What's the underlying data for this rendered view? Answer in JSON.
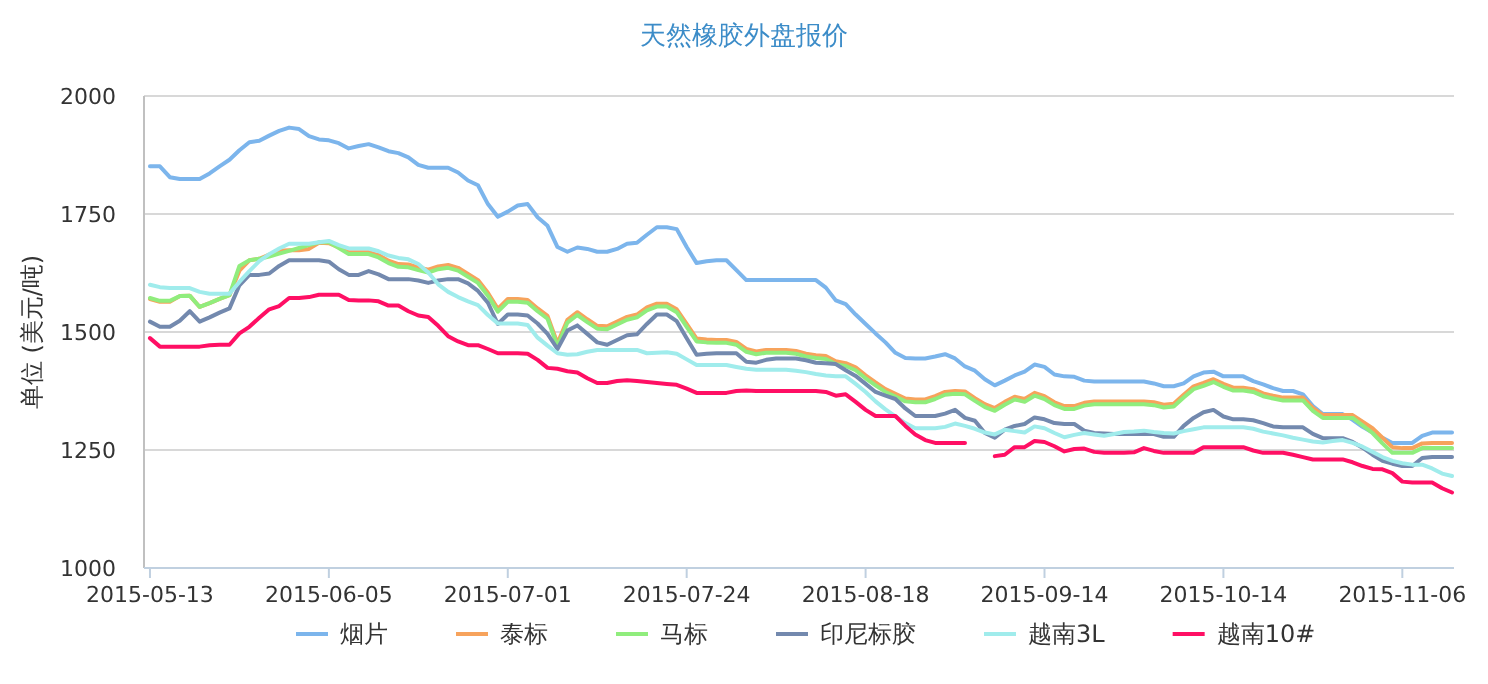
{
  "chart_data": {
    "type": "line",
    "title": "天然橡胶外盘报价",
    "ylabel": "单位 (美元/吨)",
    "categories": [
      "2015-05-13",
      null,
      null,
      null,
      null,
      null,
      null,
      null,
      null,
      null,
      null,
      null,
      null,
      null,
      null,
      null,
      null,
      null,
      "2015-06-05",
      null,
      null,
      null,
      null,
      null,
      null,
      null,
      null,
      null,
      null,
      null,
      null,
      null,
      null,
      null,
      null,
      null,
      "2015-07-01",
      null,
      null,
      null,
      null,
      null,
      null,
      null,
      null,
      null,
      null,
      null,
      null,
      null,
      null,
      null,
      null,
      null,
      "2015-07-24",
      null,
      null,
      null,
      null,
      null,
      null,
      null,
      null,
      null,
      null,
      null,
      null,
      null,
      null,
      null,
      null,
      null,
      "2015-08-18",
      null,
      null,
      null,
      null,
      null,
      null,
      null,
      null,
      null,
      null,
      null,
      null,
      null,
      null,
      null,
      null,
      null,
      "2015-09-14",
      null,
      null,
      null,
      null,
      null,
      null,
      null,
      null,
      null,
      null,
      null,
      null,
      null,
      null,
      null,
      null,
      null,
      "2015-10-14",
      null,
      null,
      null,
      null,
      null,
      null,
      null,
      null,
      null,
      null,
      null,
      null,
      null,
      null,
      null,
      null,
      null,
      "2015-11-06",
      null,
      null,
      null,
      null,
      null
    ],
    "ylim": [
      1000,
      2000
    ],
    "yticks": [
      1000,
      1250,
      1500,
      1750,
      2000
    ],
    "grid": "y",
    "legend": "bottom",
    "marker": "none",
    "line_style": "solid",
    "series": [
      {
        "name": "烟片",
        "color": "#7cb5ec",
        "values": [
          1851,
          1851,
          1828,
          1824,
          1824,
          1824,
          1836,
          1851,
          1865,
          1885,
          1902,
          1905,
          1916,
          1926,
          1933,
          1930,
          1915,
          1908,
          1906,
          1900,
          1889,
          1894,
          1898,
          1891,
          1883,
          1879,
          1870,
          1854,
          1848,
          1848,
          1848,
          1838,
          1821,
          1811,
          1771,
          1744,
          1755,
          1768,
          1771,
          1743,
          1725,
          1680,
          1670,
          1679,
          1676,
          1670,
          1670,
          1676,
          1687,
          1689,
          1706,
          1722,
          1722,
          1718,
          1680,
          1646,
          1650,
          1652,
          1652,
          1631,
          1610,
          1610,
          1610,
          1610,
          1610,
          1610,
          1610,
          1610,
          1594,
          1567,
          1559,
          1537,
          1517,
          1497,
          1478,
          1456,
          1445,
          1444,
          1444,
          1448,
          1453,
          1444,
          1427,
          1418,
          1400,
          1387,
          1397,
          1408,
          1416,
          1431,
          1426,
          1410,
          1406,
          1405,
          1397,
          1395,
          1395,
          1395,
          1395,
          1395,
          1395,
          1391,
          1385,
          1385,
          1391,
          1406,
          1414,
          1416,
          1406,
          1406,
          1406,
          1396,
          1389,
          1381,
          1375,
          1375,
          1368,
          1343,
          1326,
          1326,
          1326,
          1314,
          1299,
          1287,
          1276,
          1265,
          1265,
          1265,
          1280,
          1287,
          1287,
          1287
        ]
      },
      {
        "name": "泰标",
        "color": "#f7a35c",
        "values": [
          1570,
          1564,
          1564,
          1576,
          1577,
          1553,
          1561,
          1570,
          1578,
          1630,
          1652,
          1655,
          1664,
          1672,
          1673,
          1673,
          1676,
          1689,
          1688,
          1679,
          1669,
          1669,
          1669,
          1663,
          1651,
          1644,
          1643,
          1637,
          1632,
          1639,
          1642,
          1636,
          1623,
          1610,
          1583,
          1549,
          1570,
          1570,
          1568,
          1550,
          1534,
          1476,
          1526,
          1542,
          1527,
          1513,
          1512,
          1522,
          1532,
          1537,
          1552,
          1560,
          1560,
          1548,
          1517,
          1486,
          1484,
          1483,
          1483,
          1479,
          1464,
          1459,
          1462,
          1462,
          1462,
          1460,
          1454,
          1451,
          1449,
          1438,
          1434,
          1425,
          1408,
          1393,
          1379,
          1369,
          1359,
          1357,
          1357,
          1364,
          1373,
          1375,
          1374,
          1360,
          1347,
          1339,
          1352,
          1363,
          1358,
          1371,
          1364,
          1351,
          1343,
          1343,
          1350,
          1353,
          1353,
          1353,
          1353,
          1353,
          1353,
          1351,
          1346,
          1348,
          1367,
          1385,
          1392,
          1400,
          1390,
          1382,
          1382,
          1379,
          1370,
          1365,
          1361,
          1361,
          1361,
          1339,
          1324,
          1324,
          1324,
          1324,
          1310,
          1296,
          1276,
          1256,
          1254,
          1254,
          1264,
          1265,
          1265,
          1265
        ]
      },
      {
        "name": "马标",
        "color": "#90ed7d",
        "values": [
          1572,
          1566,
          1566,
          1576,
          1577,
          1553,
          1561,
          1570,
          1578,
          1640,
          1652,
          1655,
          1660,
          1666,
          1672,
          1678,
          1684,
          1690,
          1690,
          1678,
          1665,
          1665,
          1665,
          1658,
          1646,
          1638,
          1637,
          1631,
          1626,
          1633,
          1636,
          1630,
          1617,
          1604,
          1577,
          1543,
          1564,
          1564,
          1562,
          1544,
          1528,
          1470,
          1520,
          1536,
          1521,
          1507,
          1506,
          1516,
          1526,
          1531,
          1546,
          1554,
          1554,
          1542,
          1511,
          1480,
          1478,
          1477,
          1477,
          1473,
          1458,
          1453,
          1456,
          1456,
          1456,
          1454,
          1448,
          1445,
          1443,
          1432,
          1428,
          1419,
          1402,
          1387,
          1373,
          1363,
          1353,
          1351,
          1351,
          1358,
          1367,
          1369,
          1368,
          1354,
          1341,
          1333,
          1346,
          1357,
          1352,
          1365,
          1358,
          1345,
          1337,
          1337,
          1344,
          1347,
          1347,
          1347,
          1347,
          1347,
          1347,
          1345,
          1340,
          1342,
          1361,
          1379,
          1386,
          1394,
          1384,
          1376,
          1376,
          1373,
          1364,
          1359,
          1355,
          1355,
          1355,
          1333,
          1318,
          1318,
          1318,
          1318,
          1302,
          1286,
          1264,
          1244,
          1244,
          1244,
          1254,
          1254,
          1254,
          1254
        ]
      },
      {
        "name": "印尼标胶",
        "color": "#7389ae",
        "values": [
          1522,
          1511,
          1511,
          1524,
          1544,
          1522,
          1531,
          1541,
          1550,
          1599,
          1621,
          1621,
          1624,
          1640,
          1652,
          1652,
          1652,
          1652,
          1649,
          1633,
          1621,
          1621,
          1629,
          1622,
          1612,
          1612,
          1612,
          1609,
          1604,
          1609,
          1612,
          1612,
          1603,
          1587,
          1562,
          1517,
          1537,
          1537,
          1535,
          1518,
          1496,
          1464,
          1503,
          1514,
          1496,
          1478,
          1473,
          1483,
          1493,
          1495,
          1517,
          1537,
          1537,
          1523,
          1487,
          1452,
          1454,
          1455,
          1455,
          1455,
          1437,
          1435,
          1441,
          1444,
          1444,
          1444,
          1440,
          1435,
          1434,
          1432,
          1419,
          1407,
          1390,
          1373,
          1365,
          1358,
          1338,
          1322,
          1322,
          1322,
          1327,
          1335,
          1318,
          1312,
          1286,
          1276,
          1293,
          1301,
          1305,
          1319,
          1315,
          1307,
          1305,
          1305,
          1291,
          1286,
          1285,
          1284,
          1284,
          1284,
          1284,
          1284,
          1278,
          1278,
          1301,
          1318,
          1330,
          1335,
          1321,
          1315,
          1315,
          1313,
          1307,
          1300,
          1298,
          1298,
          1298,
          1284,
          1275,
          1275,
          1275,
          1267,
          1255,
          1240,
          1227,
          1221,
          1216,
          1216,
          1233,
          1235,
          1235,
          1235
        ]
      },
      {
        "name": "越南3L",
        "color": "#a0ecec",
        "values": [
          1600,
          1595,
          1593,
          1593,
          1593,
          1585,
          1581,
          1581,
          1581,
          1606,
          1629,
          1650,
          1665,
          1677,
          1687,
          1687,
          1687,
          1690,
          1693,
          1684,
          1677,
          1677,
          1677,
          1671,
          1662,
          1657,
          1654,
          1644,
          1626,
          1601,
          1585,
          1574,
          1565,
          1557,
          1536,
          1518,
          1518,
          1518,
          1515,
          1488,
          1471,
          1455,
          1452,
          1453,
          1458,
          1462,
          1462,
          1462,
          1462,
          1462,
          1455,
          1456,
          1457,
          1454,
          1442,
          1430,
          1430,
          1430,
          1430,
          1426,
          1422,
          1420,
          1420,
          1420,
          1420,
          1418,
          1415,
          1411,
          1408,
          1406,
          1406,
          1390,
          1373,
          1353,
          1336,
          1321,
          1307,
          1296,
          1296,
          1296,
          1299,
          1306,
          1301,
          1295,
          1287,
          1283,
          1293,
          1290,
          1287,
          1300,
          1296,
          1286,
          1277,
          1282,
          1286,
          1283,
          1280,
          1284,
          1288,
          1289,
          1291,
          1288,
          1286,
          1285,
          1290,
          1294,
          1298,
          1298,
          1298,
          1298,
          1298,
          1295,
          1289,
          1285,
          1281,
          1276,
          1272,
          1268,
          1266,
          1269,
          1271,
          1265,
          1257,
          1246,
          1235,
          1227,
          1222,
          1219,
          1219,
          1211,
          1200,
          1195
        ]
      },
      {
        "name": "越南10#",
        "color": "#ff0f64",
        "values": [
          1487,
          1469,
          1469,
          1469,
          1469,
          1469,
          1472,
          1473,
          1473,
          1497,
          1511,
          1530,
          1548,
          1555,
          1572,
          1572,
          1574,
          1579,
          1579,
          1579,
          1568,
          1567,
          1567,
          1565,
          1556,
          1556,
          1544,
          1535,
          1532,
          1513,
          1491,
          1480,
          1472,
          1472,
          1464,
          1455,
          1455,
          1455,
          1454,
          1441,
          1424,
          1422,
          1417,
          1414,
          1402,
          1392,
          1392,
          1396,
          1398,
          1396,
          1394,
          1392,
          1390,
          1388,
          1380,
          1371,
          1371,
          1371,
          1371,
          1375,
          1376,
          1375,
          1375,
          1375,
          1375,
          1375,
          1375,
          1375,
          1373,
          1365,
          1368,
          1352,
          1335,
          1322,
          1322,
          1322,
          1301,
          1283,
          1271,
          1265,
          1265,
          1265,
          1265,
          null,
          null,
          1237,
          1240,
          1256,
          1256,
          1269,
          1267,
          1258,
          1247,
          1252,
          1253,
          1246,
          1244,
          1244,
          1244,
          1245,
          1254,
          1248,
          1244,
          1244,
          1244,
          1244,
          1256,
          1256,
          1256,
          1256,
          1256,
          1249,
          1244,
          1244,
          1244,
          1240,
          1235,
          1230,
          1230,
          1230,
          1230,
          1224,
          1216,
          1210,
          1209,
          1201,
          1183,
          1181,
          1181,
          1181,
          1169,
          1160
        ]
      }
    ]
  }
}
